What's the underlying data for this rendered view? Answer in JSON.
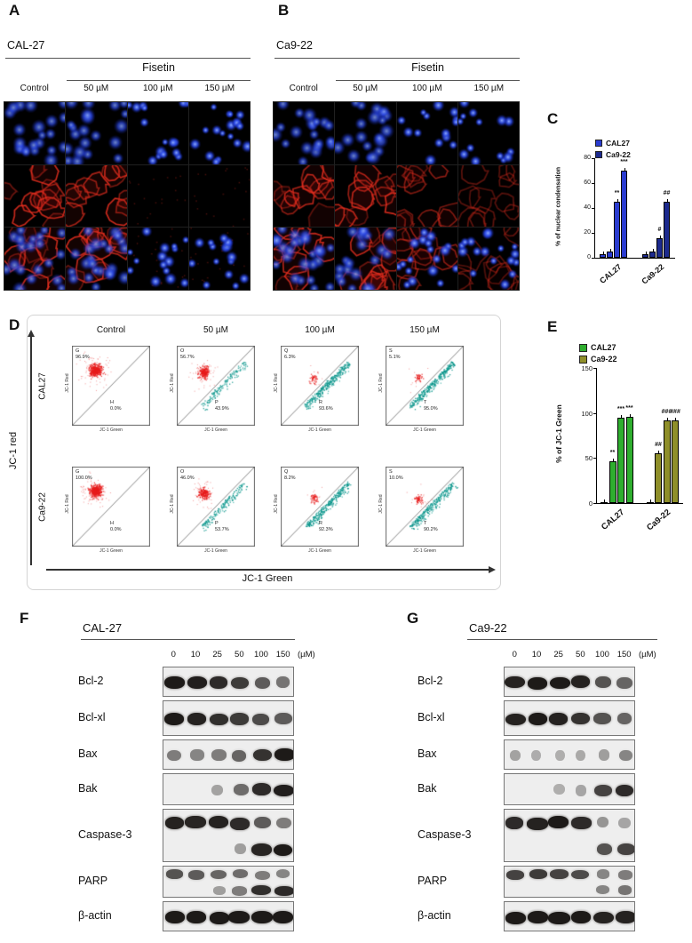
{
  "panels": {
    "A": {
      "label": "A",
      "cell_line": "CAL-27",
      "treatment": "Fisetin",
      "doses": [
        "Control",
        "50 µM",
        "100 µM",
        "150 µM"
      ],
      "red_levels": [
        0.95,
        1,
        0.05,
        0.02
      ]
    },
    "B": {
      "label": "B",
      "cell_line": "Ca9-22",
      "treatment": "Fisetin",
      "doses": [
        "Control",
        "50 µM",
        "100 µM",
        "150 µM"
      ],
      "red_levels": [
        0.95,
        0.95,
        0.5,
        0.15
      ]
    },
    "C": {
      "label": "C"
    },
    "D": {
      "label": "D",
      "col_labels": [
        "Control",
        "50 µM",
        "100 µM",
        "150 µM"
      ],
      "x_axis": "JC-1 Green",
      "y_axis": "JC-1 red",
      "plot_x_label": "JC-1 Green",
      "plot_y_label": "JC-1 Red",
      "rows": [
        {
          "cell_line": "CAL27",
          "plots": [
            {
              "top_gate": "G",
              "top_pct": "96.9%",
              "bottom_gate": "H",
              "bottom_pct": "0.0%"
            },
            {
              "top_gate": "O",
              "top_pct": "56.7%",
              "bottom_gate": "P",
              "bottom_pct": "43.9%"
            },
            {
              "top_gate": "Q",
              "top_pct": "6.3%",
              "bottom_gate": "R",
              "bottom_pct": "93.6%"
            },
            {
              "top_gate": "S",
              "top_pct": "5.1%",
              "bottom_gate": "T",
              "bottom_pct": "95.0%"
            }
          ]
        },
        {
          "cell_line": "Ca9-22",
          "plots": [
            {
              "top_gate": "G",
              "top_pct": "100.0%",
              "bottom_gate": "H",
              "bottom_pct": "0.0%"
            },
            {
              "top_gate": "O",
              "top_pct": "46.0%",
              "bottom_gate": "P",
              "bottom_pct": "53.7%"
            },
            {
              "top_gate": "Q",
              "top_pct": "8.2%",
              "bottom_gate": "R",
              "bottom_pct": "92.3%"
            },
            {
              "top_gate": "S",
              "top_pct": "10.0%",
              "bottom_gate": "T",
              "bottom_pct": "90.2%"
            }
          ]
        }
      ]
    },
    "E": {
      "label": "E"
    },
    "F": {
      "label": "F",
      "cell_line": "CAL-27",
      "lane_labels": [
        "0",
        "10",
        "25",
        "50",
        "100",
        "150"
      ],
      "unit": "(µM)",
      "blots": [
        {
          "protein": "Bcl-2",
          "bands": [
            [
              0.95,
              0.92,
              0.85,
              0.75,
              0.55,
              0.4
            ]
          ]
        },
        {
          "protein": "Bcl-xl",
          "bands": [
            [
              0.95,
              0.9,
              0.82,
              0.75,
              0.65,
              0.55
            ]
          ]
        },
        {
          "protein": "Bax",
          "bands": [
            [
              0.35,
              0.3,
              0.35,
              0.5,
              0.8,
              0.95
            ]
          ]
        },
        {
          "protein": "Bak",
          "bands": [
            [
              0.04,
              0.04,
              0.12,
              0.45,
              0.85,
              0.92
            ]
          ]
        },
        {
          "protein": "Caspase-3",
          "bands": [
            [
              0.9,
              0.88,
              0.9,
              0.85,
              0.55,
              0.35
            ],
            [
              0,
              0,
              0,
              0.15,
              0.88,
              0.95
            ]
          ]
        },
        {
          "protein": "PARP",
          "bands": [
            [
              0.6,
              0.55,
              0.5,
              0.45,
              0.35,
              0.3
            ],
            [
              0,
              0,
              0.15,
              0.35,
              0.82,
              0.85
            ]
          ]
        },
        {
          "protein": "β-actin",
          "bands": [
            [
              0.95,
              0.95,
              0.95,
              0.95,
              0.95,
              0.95
            ]
          ]
        }
      ]
    },
    "G": {
      "label": "G",
      "cell_line": "Ca9-22",
      "lane_labels": [
        "0",
        "10",
        "25",
        "50",
        "100",
        "150"
      ],
      "unit": "(µM)",
      "blots": [
        {
          "protein": "Bcl-2",
          "bands": [
            [
              0.9,
              0.95,
              0.95,
              0.9,
              0.6,
              0.5
            ]
          ]
        },
        {
          "protein": "Bcl-xl",
          "bands": [
            [
              0.9,
              0.95,
              0.9,
              0.8,
              0.6,
              0.5
            ]
          ]
        },
        {
          "protein": "Bax",
          "bands": [
            [
              0.12,
              0.06,
              0.05,
              0.08,
              0.15,
              0.3
            ]
          ]
        },
        {
          "protein": "Bak",
          "bands": [
            [
              0.03,
              0.03,
              0.05,
              0.1,
              0.7,
              0.85
            ]
          ]
        },
        {
          "protein": "Caspase-3",
          "bands": [
            [
              0.85,
              0.9,
              0.95,
              0.85,
              0.2,
              0.1
            ],
            [
              0,
              0,
              0,
              0,
              0.6,
              0.7
            ]
          ]
        },
        {
          "protein": "PARP",
          "bands": [
            [
              0.7,
              0.75,
              0.7,
              0.65,
              0.3,
              0.35
            ],
            [
              0,
              0,
              0,
              0,
              0.3,
              0.4
            ]
          ]
        },
        {
          "protein": "β-actin",
          "bands": [
            [
              0.95,
              0.95,
              0.95,
              0.95,
              0.9,
              0.9
            ]
          ]
        }
      ]
    }
  },
  "chart_data": [
    {
      "id": "C",
      "type": "bar",
      "title": "",
      "ylabel": "% of nuclear condensation",
      "ylim": [
        0,
        80
      ],
      "yticks": [
        0,
        20,
        40,
        60,
        80
      ],
      "categories": [
        "CAL27",
        "Ca9-22"
      ],
      "legend_position": "upper-left",
      "grid": false,
      "series": [
        {
          "name": "CAL27",
          "color": "#2a3cd0",
          "values": [
            3,
            5,
            45,
            70
          ],
          "annotations": [
            "",
            "",
            "**",
            "***"
          ]
        },
        {
          "name": "Ca9-22",
          "color": "#1c2a8e",
          "values": [
            3,
            5,
            16,
            45
          ],
          "annotations": [
            "",
            "",
            "#",
            "##"
          ]
        }
      ]
    },
    {
      "id": "E",
      "type": "bar",
      "title": "",
      "ylabel": "% of JC-1 Green",
      "ylim": [
        0,
        150
      ],
      "yticks": [
        0,
        50,
        100,
        150
      ],
      "categories": [
        "CAL27",
        "Ca9-22"
      ],
      "legend_position": "upper-left",
      "grid": false,
      "series": [
        {
          "name": "CAL27",
          "color": "#2fae2f",
          "values": [
            1,
            46,
            95,
            96
          ],
          "annotations": [
            "",
            "**",
            "***",
            "***"
          ]
        },
        {
          "name": "Ca9-22",
          "color": "#8f8f2a",
          "values": [
            1,
            55,
            92,
            92
          ],
          "annotations": [
            "",
            "##",
            "###",
            "###"
          ]
        }
      ]
    }
  ]
}
